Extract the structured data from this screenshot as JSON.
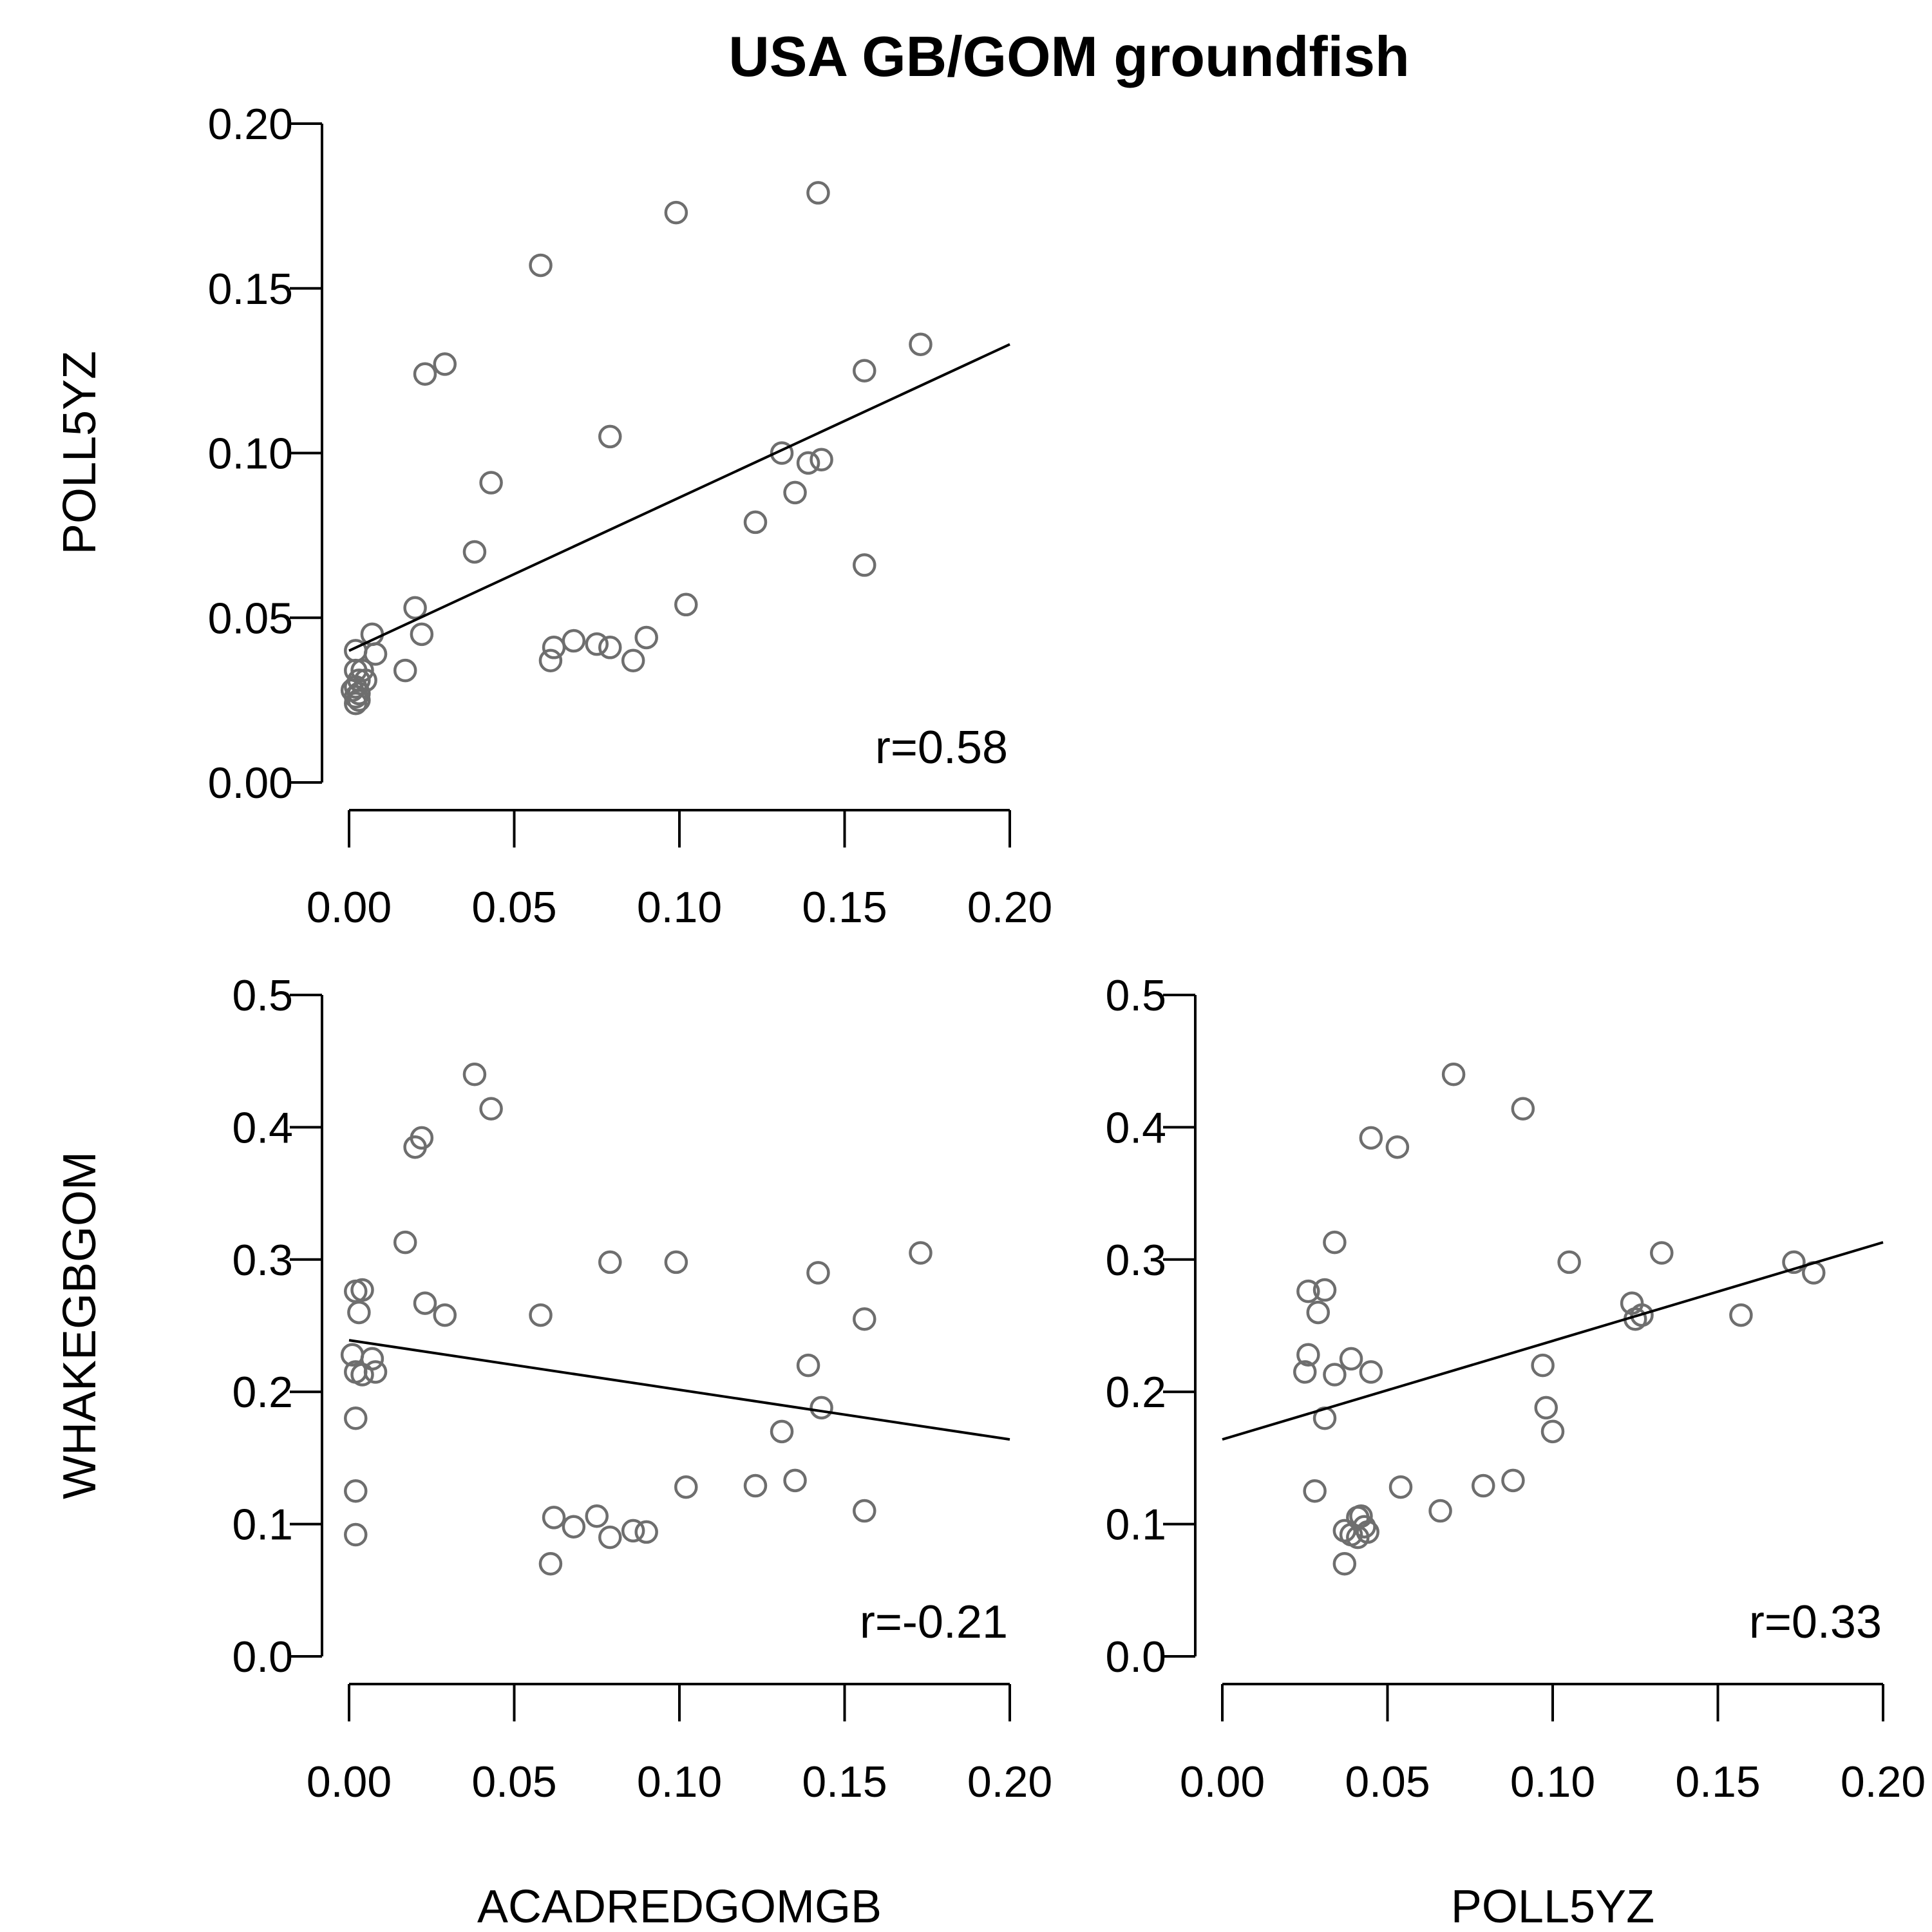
{
  "chart_data": {
    "title": "USA GB/GOM groundfish",
    "type": "scatter",
    "panels": [
      {
        "id": "acad-vs-poll",
        "type": "scatter",
        "xlim": [
          0,
          0.2
        ],
        "ylim": [
          0,
          0.2
        ],
        "xticks": [
          "0.00",
          "0.05",
          "0.10",
          "0.15",
          "0.20"
        ],
        "yticks": [
          "0.00",
          "0.05",
          "0.10",
          "0.15",
          "0.20"
        ],
        "ylabel": "POLL5YZ",
        "xlabel": "",
        "r_label": "r=0.58",
        "fit_line": {
          "x": [
            0,
            0.2
          ],
          "y": [
            0.04,
            0.133
          ]
        },
        "points": [
          [
            0.002,
            0.04
          ],
          [
            0.007,
            0.045
          ],
          [
            0.008,
            0.039
          ],
          [
            0.002,
            0.034
          ],
          [
            0.004,
            0.034
          ],
          [
            0.005,
            0.031
          ],
          [
            0.003,
            0.031
          ],
          [
            0.002,
            0.029
          ],
          [
            0.001,
            0.028
          ],
          [
            0.003,
            0.027
          ],
          [
            0.002,
            0.026
          ],
          [
            0.003,
            0.025
          ],
          [
            0.002,
            0.024
          ],
          [
            0.017,
            0.034
          ],
          [
            0.02,
            0.053
          ],
          [
            0.022,
            0.045
          ],
          [
            0.023,
            0.124
          ],
          [
            0.029,
            0.127
          ],
          [
            0.038,
            0.07
          ],
          [
            0.043,
            0.091
          ],
          [
            0.058,
            0.157
          ],
          [
            0.061,
            0.037
          ],
          [
            0.062,
            0.041
          ],
          [
            0.068,
            0.043
          ],
          [
            0.075,
            0.042
          ],
          [
            0.079,
            0.041
          ],
          [
            0.079,
            0.105
          ],
          [
            0.086,
            0.037
          ],
          [
            0.09,
            0.044
          ],
          [
            0.099,
            0.173
          ],
          [
            0.102,
            0.054
          ],
          [
            0.123,
            0.079
          ],
          [
            0.131,
            0.1
          ],
          [
            0.135,
            0.088
          ],
          [
            0.139,
            0.097
          ],
          [
            0.143,
            0.098
          ],
          [
            0.142,
            0.179
          ],
          [
            0.156,
            0.125
          ],
          [
            0.156,
            0.066
          ],
          [
            0.173,
            0.133
          ]
        ]
      },
      {
        "id": "acad-vs-whake",
        "type": "scatter",
        "xlim": [
          0,
          0.2
        ],
        "ylim": [
          0,
          0.5
        ],
        "xticks": [
          "0.00",
          "0.05",
          "0.10",
          "0.15",
          "0.20"
        ],
        "yticks": [
          "0.0",
          "0.1",
          "0.2",
          "0.3",
          "0.4",
          "0.5"
        ],
        "ylabel": "WHAKEGBGOM",
        "xlabel": "ACADREDGOMGB",
        "r_label": "r=-0.21",
        "fit_line": {
          "x": [
            0,
            0.2
          ],
          "y": [
            0.239,
            0.164
          ]
        },
        "points": [
          [
            0.002,
            0.276
          ],
          [
            0.004,
            0.277
          ],
          [
            0.003,
            0.26
          ],
          [
            0.001,
            0.228
          ],
          [
            0.007,
            0.225
          ],
          [
            0.002,
            0.215
          ],
          [
            0.004,
            0.213
          ],
          [
            0.008,
            0.215
          ],
          [
            0.002,
            0.18
          ],
          [
            0.002,
            0.125
          ],
          [
            0.002,
            0.092
          ],
          [
            0.017,
            0.313
          ],
          [
            0.02,
            0.385
          ],
          [
            0.022,
            0.392
          ],
          [
            0.023,
            0.267
          ],
          [
            0.029,
            0.258
          ],
          [
            0.038,
            0.44
          ],
          [
            0.043,
            0.414
          ],
          [
            0.058,
            0.258
          ],
          [
            0.061,
            0.07
          ],
          [
            0.062,
            0.105
          ],
          [
            0.068,
            0.098
          ],
          [
            0.075,
            0.106
          ],
          [
            0.079,
            0.298
          ],
          [
            0.079,
            0.09
          ],
          [
            0.086,
            0.095
          ],
          [
            0.09,
            0.094
          ],
          [
            0.099,
            0.298
          ],
          [
            0.102,
            0.128
          ],
          [
            0.123,
            0.129
          ],
          [
            0.131,
            0.17
          ],
          [
            0.135,
            0.133
          ],
          [
            0.139,
            0.22
          ],
          [
            0.142,
            0.29
          ],
          [
            0.143,
            0.188
          ],
          [
            0.156,
            0.255
          ],
          [
            0.156,
            0.11
          ],
          [
            0.173,
            0.305
          ]
        ]
      },
      {
        "id": "poll-vs-whake",
        "type": "scatter",
        "xlim": [
          0,
          0.2
        ],
        "ylim": [
          0,
          0.5
        ],
        "xticks": [
          "0.00",
          "0.05",
          "0.10",
          "0.15",
          "0.20"
        ],
        "yticks": [
          "0.0",
          "0.1",
          "0.2",
          "0.3",
          "0.4",
          "0.5"
        ],
        "ylabel": "",
        "xlabel": "POLL5YZ",
        "r_label": "r=0.33",
        "fit_line": {
          "x": [
            0,
            0.2
          ],
          "y": [
            0.164,
            0.313
          ]
        },
        "points": [
          [
            0.026,
            0.276
          ],
          [
            0.031,
            0.277
          ],
          [
            0.029,
            0.26
          ],
          [
            0.026,
            0.228
          ],
          [
            0.039,
            0.225
          ],
          [
            0.025,
            0.215
          ],
          [
            0.034,
            0.213
          ],
          [
            0.045,
            0.215
          ],
          [
            0.031,
            0.18
          ],
          [
            0.028,
            0.125
          ],
          [
            0.034,
            0.313
          ],
          [
            0.053,
            0.385
          ],
          [
            0.045,
            0.392
          ],
          [
            0.07,
            0.44
          ],
          [
            0.091,
            0.414
          ],
          [
            0.124,
            0.267
          ],
          [
            0.127,
            0.258
          ],
          [
            0.105,
            0.298
          ],
          [
            0.133,
            0.305
          ],
          [
            0.157,
            0.258
          ],
          [
            0.173,
            0.298
          ],
          [
            0.179,
            0.29
          ],
          [
            0.125,
            0.255
          ],
          [
            0.097,
            0.22
          ],
          [
            0.098,
            0.188
          ],
          [
            0.1,
            0.17
          ],
          [
            0.088,
            0.133
          ],
          [
            0.079,
            0.129
          ],
          [
            0.066,
            0.11
          ],
          [
            0.054,
            0.128
          ],
          [
            0.037,
            0.07
          ],
          [
            0.041,
            0.105
          ],
          [
            0.043,
            0.098
          ],
          [
            0.042,
            0.106
          ],
          [
            0.041,
            0.09
          ],
          [
            0.037,
            0.095
          ],
          [
            0.044,
            0.094
          ],
          [
            0.039,
            0.092
          ]
        ]
      }
    ]
  }
}
